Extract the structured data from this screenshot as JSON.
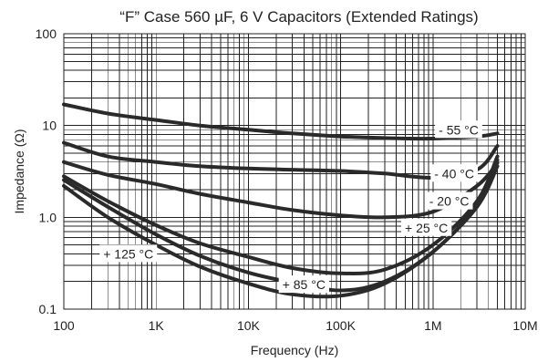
{
  "chart_data": {
    "type": "line",
    "title": "“F” Case 560 µF, 6 V Capacitors (Extended Ratings)",
    "xlabel": "Frequency (Hz)",
    "ylabel": "Impedance (Ω)",
    "x_scale": "log",
    "y_scale": "log",
    "xlim": [
      100,
      10000000
    ],
    "ylim": [
      0.1,
      100
    ],
    "x_tick_labels": [
      "100",
      "1K",
      "10K",
      "100K",
      "1M",
      "10M"
    ],
    "y_tick_labels": [
      "0.1",
      "1.0",
      "10",
      "100"
    ],
    "grid": true,
    "x": [
      100,
      300,
      1000,
      3000,
      10000,
      30000,
      100000,
      300000,
      1000000,
      3000000,
      5000000
    ],
    "series": [
      {
        "name": "- 55 °C",
        "values": [
          17,
          13.5,
          11.5,
          10,
          9,
          8.2,
          7.6,
          7.3,
          7.2,
          7.6,
          8.2
        ]
      },
      {
        "name": "- 40 °C",
        "values": [
          6.5,
          4.6,
          4,
          3.6,
          3.4,
          3.3,
          3.2,
          3,
          2.7,
          3.3,
          6
        ]
      },
      {
        "name": "- 20 °C",
        "values": [
          4,
          2.9,
          2.3,
          1.8,
          1.45,
          1.2,
          1.05,
          1,
          1.15,
          2.2,
          3.9
        ]
      },
      {
        "name": "+ 25 °C",
        "values": [
          2.8,
          1.5,
          0.82,
          0.52,
          0.37,
          0.28,
          0.245,
          0.27,
          0.5,
          1.5,
          4.6
        ]
      },
      {
        "name": "+ 85 °C",
        "values": [
          2.55,
          1.3,
          0.65,
          0.38,
          0.25,
          0.195,
          0.16,
          0.2,
          0.42,
          1.35,
          4.2
        ]
      },
      {
        "name": "+ 125 °C",
        "values": [
          2.2,
          1.0,
          0.5,
          0.29,
          0.19,
          0.145,
          0.14,
          0.19,
          0.42,
          1.3,
          3.6
        ]
      }
    ],
    "curve_labels": [
      "- 55 °C",
      "- 40 °C",
      "- 20 °C",
      "+ 25 °C",
      "+ 85 °C",
      "+ 125 °C"
    ]
  }
}
